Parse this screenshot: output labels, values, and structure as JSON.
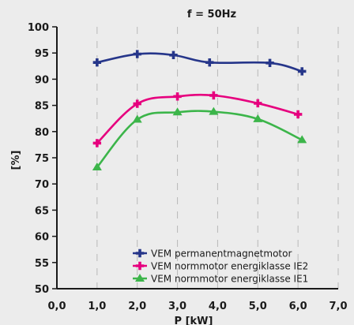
{
  "chart_data": {
    "type": "line",
    "title": "f = 50Hz",
    "xlabel": "P [kW]",
    "ylabel": "[%]",
    "xlim": [
      0,
      7
    ],
    "ylim": [
      50,
      100
    ],
    "x_ticks": [
      "0,0",
      "1,0",
      "2,0",
      "3,0",
      "4,0",
      "5,0",
      "6,0",
      "7,0"
    ],
    "y_ticks": [
      "50",
      "55",
      "60",
      "65",
      "70",
      "75",
      "80",
      "85",
      "90",
      "95",
      "100"
    ],
    "grid": "vertical dashed",
    "legend_position": "bottom-right",
    "series": [
      {
        "name": "VEM permanentmagnetmotor",
        "color": "#26368a",
        "marker": "plus",
        "x": [
          1.0,
          2.0,
          2.9,
          3.8,
          5.3,
          6.1
        ],
        "y": [
          93.2,
          94.8,
          94.6,
          93.2,
          93.1,
          91.5
        ]
      },
      {
        "name": "VEM normmotor energiklasse IE2",
        "color": "#e6007e",
        "marker": "plus",
        "x": [
          1.0,
          2.0,
          3.0,
          3.9,
          5.0,
          6.0
        ],
        "y": [
          77.8,
          85.3,
          86.7,
          86.9,
          85.4,
          83.3
        ]
      },
      {
        "name": "VEM normmotor energiklasse IE1",
        "color": "#3cb54a",
        "marker": "triangle",
        "x": [
          1.0,
          2.0,
          3.0,
          3.9,
          5.0,
          6.1
        ],
        "y": [
          73.2,
          82.3,
          83.7,
          83.8,
          82.4,
          78.4
        ]
      }
    ]
  }
}
